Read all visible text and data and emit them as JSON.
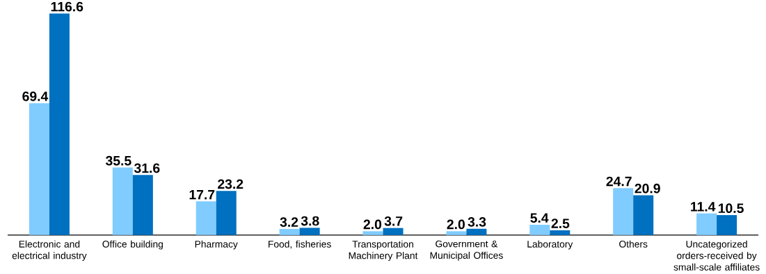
{
  "chart_data": {
    "type": "bar",
    "categories": [
      "Electronic and electrical industry",
      "Office building",
      "Pharmacy",
      "Food, fisheries",
      "Transportation Machinery Plant",
      "Government & Municipal Offices",
      "Laboratory",
      "Others",
      "Uncategorized orders-received by small-scale affiliates"
    ],
    "series": [
      {
        "color": "#80ccff",
        "values": [
          69.4,
          35.5,
          17.7,
          3.2,
          2.0,
          2.0,
          5.4,
          24.7,
          11.4
        ],
        "value_labels": [
          "69.4",
          "35.5",
          "17.7",
          "3.2",
          "2.0",
          "2.0",
          "5.4",
          "24.7",
          "11.4"
        ]
      },
      {
        "color": "#0070c0",
        "values": [
          116.6,
          31.6,
          23.2,
          3.8,
          3.7,
          3.3,
          2.5,
          20.9,
          10.5
        ],
        "value_labels": [
          "116.6",
          "31.6",
          "23.2",
          "3.8",
          "3.7",
          "3.3",
          "2.5",
          "20.9",
          "10.5"
        ]
      }
    ]
  }
}
